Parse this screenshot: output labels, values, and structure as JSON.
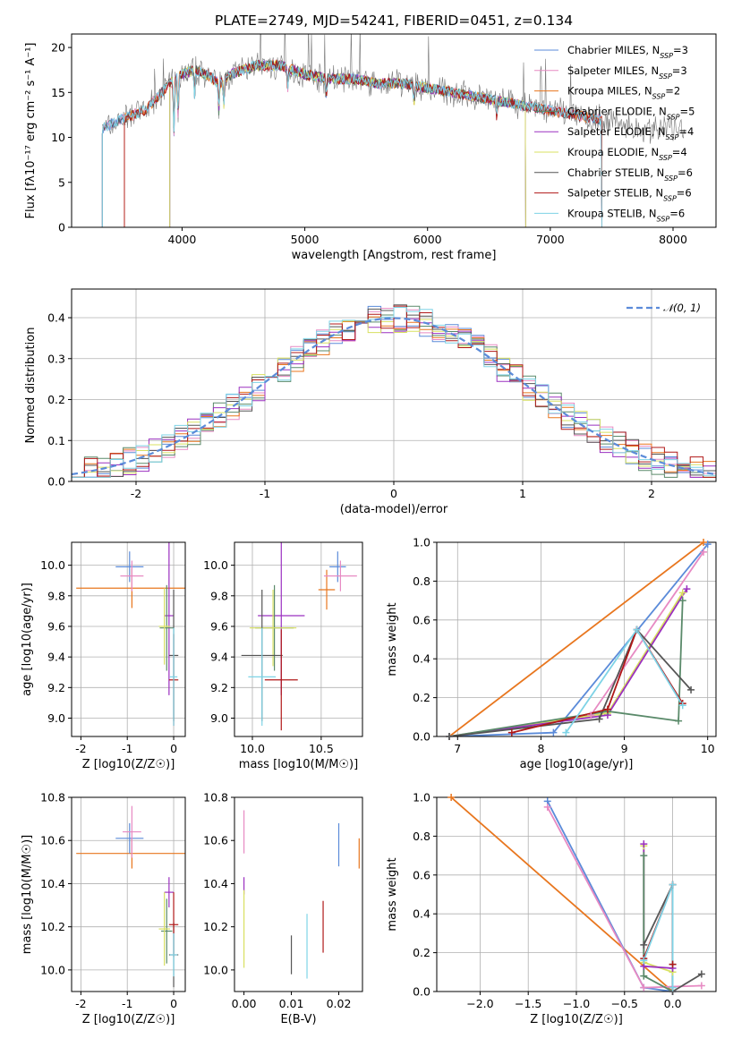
{
  "title": "PLATE=2749, MJD=54241, FIBERID=0451, z=0.134",
  "colors": {
    "Chabrier MILES": "#5b8bd9",
    "Salpeter MILES": "#e78ac3",
    "Kroupa MILES": "#e8761e",
    "Chabrier ELODIE": "#5a8a6a",
    "Salpeter ELODIE": "#9b30c0",
    "Kroupa ELODIE": "#d8e060",
    "Chabrier STELIB": "#555555",
    "Salpeter STELIB": "#b01818",
    "Kroupa STELIB": "#7ed3e6"
  },
  "chart_data": [
    {
      "id": "spectrum",
      "type": "line",
      "xlabel": "wavelength [Angstrom, rest frame]",
      "ylabel": "Flux [fλ10⁻¹⁷ erg cm⁻² s⁻¹ A⁻¹]",
      "xlim": [
        3100,
        8350
      ],
      "ylim": [
        0,
        21.5
      ],
      "xticks": [
        4000,
        5000,
        6000,
        7000,
        8000
      ],
      "yticks": [
        0,
        5,
        10,
        15,
        20
      ],
      "legend_position": "top-right",
      "legend": [
        "Chabrier MILES, N_SSP=3",
        "Salpeter MILES, N_SSP=3",
        "Kroupa MILES, N_SSP=2",
        "Chabrier ELODIE, N_SSP=5",
        "Salpeter ELODIE, N_SSP=4",
        "Kroupa ELODIE, N_SSP=4",
        "Chabrier STELIB, N_SSP=6",
        "Salpeter STELIB, N_SSP=6",
        "Kroupa STELIB, N_SSP=6"
      ],
      "data_spectrum": {
        "x": [
          3350,
          3500,
          3700,
          3800,
          3900,
          4000,
          4100,
          4200,
          4300,
          4400,
          4500,
          4600,
          4800,
          5000,
          5200,
          5400,
          5600,
          5800,
          6000,
          6200,
          6400,
          6600,
          6800,
          7000,
          7200,
          7400,
          7600,
          7800,
          8000,
          8100
        ],
        "y": [
          11,
          12,
          13,
          14.5,
          16,
          17,
          17.5,
          17,
          16,
          17,
          17.5,
          18,
          18,
          17,
          16.5,
          16.5,
          16,
          16,
          15.5,
          15,
          14.5,
          14,
          13.5,
          13,
          12.5,
          12,
          11.5,
          11,
          11,
          10.5
        ]
      },
      "model_range": {
        "Kroupa MILES": [
          3530,
          7420
        ],
        "Salpeter STELIB": [
          3530,
          7420
        ],
        "Kroupa ELODIE": [
          3900,
          6800
        ],
        "Chabrier ELODIE": [
          3900,
          6800
        ],
        "Salpeter ELODIE": [
          3900,
          6800
        ],
        "Chabrier MILES": [
          3350,
          7420
        ],
        "Salpeter MILES": [
          3350,
          7420
        ],
        "Chabrier STELIB": [
          3350,
          7420
        ],
        "Kroupa STELIB": [
          3350,
          7420
        ]
      }
    },
    {
      "id": "residuals",
      "type": "line",
      "xlabel": "(data-model)/error",
      "ylabel": "Normed distribution",
      "xlim": [
        -2.5,
        2.5
      ],
      "ylim": [
        0,
        0.47
      ],
      "xticks": [
        -2,
        -1,
        0,
        1,
        2
      ],
      "yticks": [
        0.0,
        0.1,
        0.2,
        0.3,
        0.4
      ],
      "grid": true,
      "legend_position": "top-right",
      "legend": [
        "𝒩(0, 1)"
      ],
      "gaussian": {
        "mean": 0,
        "sigma": 1
      }
    },
    {
      "id": "age-vs-Z",
      "type": "scatter",
      "xlabel": "Z [log10(Z/Z☉)]",
      "ylabel": "age  [log10(age/yr)]",
      "xlim": [
        -2.2,
        0.25
      ],
      "ylim": [
        8.88,
        10.15
      ],
      "xticks": [
        -2,
        -1,
        0
      ],
      "yticks": [
        9.0,
        9.2,
        9.4,
        9.6,
        9.8,
        10.0
      ],
      "grid": true,
      "points": [
        {
          "model": "Kroupa MILES",
          "x": -0.9,
          "xerr": 1.2,
          "y": 9.85,
          "yerr": 0.13
        },
        {
          "model": "Chabrier MILES",
          "x": -0.95,
          "xerr": 0.3,
          "y": 9.99,
          "yerr": 0.1
        },
        {
          "model": "Salpeter MILES",
          "x": -0.9,
          "xerr": 0.25,
          "y": 9.93,
          "yerr": 0.1
        },
        {
          "model": "Salpeter ELODIE",
          "x": -0.1,
          "xerr": 0.1,
          "y": 9.67,
          "yerr": 0.52
        },
        {
          "model": "Chabrier ELODIE",
          "x": -0.15,
          "xerr": 0.15,
          "y": 9.59,
          "yerr": 0.28
        },
        {
          "model": "Kroupa ELODIE",
          "x": -0.2,
          "xerr": 0.12,
          "y": 9.6,
          "yerr": 0.25
        },
        {
          "model": "Chabrier STELIB",
          "x": 0.0,
          "xerr": 0.1,
          "y": 9.41,
          "yerr": 0.43
        },
        {
          "model": "Salpeter STELIB",
          "x": 0.0,
          "xerr": 0.1,
          "y": 9.25,
          "yerr": 0.3
        },
        {
          "model": "Kroupa STELIB",
          "x": 0.0,
          "xerr": 0.08,
          "y": 9.27,
          "yerr": 0.32
        }
      ]
    },
    {
      "id": "age-vs-mass",
      "type": "scatter",
      "xlabel": "mass [log10(M/M☉)]",
      "xlim": [
        9.87,
        10.8
      ],
      "ylim": [
        8.88,
        10.15
      ],
      "xticks": [
        10.0,
        10.5
      ],
      "yticks": [
        9.0,
        9.2,
        9.4,
        9.6,
        9.8,
        10.0
      ],
      "grid": true,
      "points": [
        {
          "model": "Kroupa MILES",
          "x": 10.54,
          "xerr": 0.06,
          "y": 9.84,
          "yerr": 0.13
        },
        {
          "model": "Chabrier MILES",
          "x": 10.62,
          "xerr": 0.06,
          "y": 9.99,
          "yerr": 0.1
        },
        {
          "model": "Salpeter MILES",
          "x": 10.64,
          "xerr": 0.12,
          "y": 9.93,
          "yerr": 0.1
        },
        {
          "model": "Salpeter ELODIE",
          "x": 10.21,
          "xerr": 0.17,
          "y": 9.67,
          "yerr": 0.52
        },
        {
          "model": "Chabrier ELODIE",
          "x": 10.16,
          "xerr": 0.14,
          "y": 9.59,
          "yerr": 0.28
        },
        {
          "model": "Kroupa ELODIE",
          "x": 10.15,
          "xerr": 0.17,
          "y": 9.59,
          "yerr": 0.25
        },
        {
          "model": "Chabrier STELIB",
          "x": 10.07,
          "xerr": 0.15,
          "y": 9.41,
          "yerr": 0.43
        },
        {
          "model": "Salpeter STELIB",
          "x": 10.21,
          "xerr": 0.12,
          "y": 9.25,
          "yerr": 0.33
        },
        {
          "model": "Kroupa STELIB",
          "x": 10.07,
          "xerr": 0.1,
          "y": 9.27,
          "yerr": 0.32
        }
      ]
    },
    {
      "id": "mass-weight-vs-age",
      "type": "line",
      "xlabel": "age  [log10(age/yr)]",
      "ylabel": "mass weight",
      "xlim": [
        6.75,
        10.1
      ],
      "ylim": [
        0,
        1.0
      ],
      "xticks": [
        7,
        8,
        9,
        10
      ],
      "yticks": [
        0.0,
        0.2,
        0.4,
        0.6,
        0.8,
        1.0
      ],
      "grid": true,
      "series": [
        {
          "model": "Kroupa MILES",
          "x": [
            6.9,
            9.95
          ],
          "y": [
            0.0,
            1.0
          ]
        },
        {
          "model": "Chabrier MILES",
          "x": [
            6.9,
            8.15,
            10.0
          ],
          "y": [
            0.0,
            0.02,
            0.99
          ]
        },
        {
          "model": "Salpeter MILES",
          "x": [
            6.9,
            8.6,
            9.95
          ],
          "y": [
            0.0,
            0.11,
            0.95
          ]
        },
        {
          "model": "Kroupa ELODIE",
          "x": [
            6.9,
            8.8,
            9.7
          ],
          "y": [
            0.0,
            0.12,
            0.74
          ]
        },
        {
          "model": "Salpeter ELODIE",
          "x": [
            6.9,
            8.8,
            9.75
          ],
          "y": [
            0.0,
            0.11,
            0.76
          ]
        },
        {
          "model": "Chabrier ELODIE",
          "x": [
            6.9,
            8.8,
            9.65,
            9.7
          ],
          "y": [
            0.0,
            0.13,
            0.08,
            0.7
          ]
        },
        {
          "model": "Chabrier STELIB",
          "x": [
            6.9,
            8.7,
            9.15,
            9.8
          ],
          "y": [
            0.0,
            0.09,
            0.55,
            0.24
          ]
        },
        {
          "model": "Salpeter STELIB",
          "x": [
            7.65,
            8.8,
            9.15,
            9.7
          ],
          "y": [
            0.02,
            0.14,
            0.55,
            0.17
          ]
        },
        {
          "model": "Kroupa STELIB",
          "x": [
            8.3,
            9.15,
            9.7
          ],
          "y": [
            0.02,
            0.55,
            0.16
          ]
        }
      ]
    },
    {
      "id": "mass-vs-Z",
      "type": "scatter",
      "xlabel": "Z [log10(Z/Z☉)]",
      "ylabel": "mass [log10(M/M☉)]",
      "xlim": [
        -2.2,
        0.25
      ],
      "ylim": [
        9.9,
        10.8
      ],
      "xticks": [
        -2,
        -1,
        0
      ],
      "yticks": [
        10.0,
        10.2,
        10.4,
        10.6,
        10.8
      ],
      "grid": true,
      "points": [
        {
          "model": "Kroupa MILES",
          "x": -0.9,
          "xerr": 1.2,
          "y": 10.54,
          "yerr": 0.07
        },
        {
          "model": "Chabrier MILES",
          "x": -0.95,
          "xerr": 0.3,
          "y": 10.61,
          "yerr": 0.07
        },
        {
          "model": "Salpeter MILES",
          "x": -0.9,
          "xerr": 0.2,
          "y": 10.64,
          "yerr": 0.12
        },
        {
          "model": "Salpeter ELODIE",
          "x": -0.1,
          "xerr": 0.1,
          "y": 10.36,
          "yerr": 0.07
        },
        {
          "model": "Chabrier ELODIE",
          "x": -0.15,
          "xerr": 0.12,
          "y": 10.18,
          "yerr": 0.15
        },
        {
          "model": "Kroupa ELODIE",
          "x": -0.2,
          "xerr": 0.12,
          "y": 10.19,
          "yerr": 0.17
        },
        {
          "model": "Chabrier STELIB",
          "x": 0.0,
          "xerr": 0.1,
          "y": 10.07,
          "yerr": 0.15
        },
        {
          "model": "Salpeter STELIB",
          "x": 0.0,
          "xerr": 0.1,
          "y": 10.21,
          "yerr": 0.15
        },
        {
          "model": "Kroupa STELIB",
          "x": 0.0,
          "xerr": 0.08,
          "y": 10.07,
          "yerr": 0.1
        }
      ]
    },
    {
      "id": "mass-vs-EBV",
      "type": "scatter",
      "xlabel": "E(B-V)",
      "xlim": [
        -0.002,
        0.025
      ],
      "ylim": [
        9.9,
        10.8
      ],
      "xticks": [
        0.0,
        0.01,
        0.02
      ],
      "xticklabels": [
        "0.00",
        "0.01",
        "0.02"
      ],
      "yticks": [
        10.0,
        10.2,
        10.4,
        10.6,
        10.8
      ],
      "points": [
        {
          "model": "Salpeter MILES",
          "x": 0.0,
          "y": 10.64,
          "yerr": 0.1
        },
        {
          "model": "Salpeter ELODIE",
          "x": 0.0,
          "y": 10.39,
          "yerr": 0.04
        },
        {
          "model": "Kroupa ELODIE",
          "x": 0.0,
          "y": 10.19,
          "yerr": 0.18
        },
        {
          "model": "Chabrier STELIB",
          "x": 0.01,
          "y": 10.07,
          "yerr": 0.09
        },
        {
          "model": "Kroupa STELIB",
          "x": 0.0133,
          "y": 10.11,
          "yerr": 0.15
        },
        {
          "model": "Salpeter STELIB",
          "x": 0.0167,
          "y": 10.2,
          "yerr": 0.12
        },
        {
          "model": "Chabrier MILES",
          "x": 0.02,
          "y": 10.58,
          "yerr": 0.1
        },
        {
          "model": "Kroupa MILES",
          "x": 0.0243,
          "y": 10.54,
          "yerr": 0.07
        }
      ]
    },
    {
      "id": "mass-weight-vs-Z",
      "type": "line",
      "xlabel": "Z [log10(Z/Z☉)]",
      "ylabel": "mass weight",
      "xlim": [
        -2.45,
        0.45
      ],
      "ylim": [
        0,
        1.0
      ],
      "xticks": [
        -2.0,
        -1.5,
        -1.0,
        -0.5,
        0.0
      ],
      "xticklabels": [
        "−2.0",
        "−1.5",
        "−1.0",
        "−0.5",
        "0.0"
      ],
      "yticks": [
        0.0,
        0.2,
        0.4,
        0.6,
        0.8,
        1.0
      ],
      "grid": true,
      "series": [
        {
          "model": "Kroupa MILES",
          "x": [
            -2.3,
            0.0
          ],
          "y": [
            1.0,
            0.0
          ]
        },
        {
          "model": "Chabrier MILES",
          "x": [
            -1.3,
            -0.3,
            0.0
          ],
          "y": [
            0.98,
            0.02,
            0.0
          ]
        },
        {
          "model": "Salpeter MILES",
          "x": [
            -1.3,
            -0.3,
            0.3
          ],
          "y": [
            0.95,
            0.02,
            0.03
          ]
        },
        {
          "model": "Kroupa ELODIE",
          "x": [
            -0.3,
            -0.3,
            0.0
          ],
          "y": [
            0.75,
            0.15,
            0.1
          ]
        },
        {
          "model": "Salpeter ELODIE",
          "x": [
            -0.3,
            -0.3,
            0.0,
            0.0
          ],
          "y": [
            0.76,
            0.13,
            0.12,
            0.0
          ]
        },
        {
          "model": "Chabrier ELODIE",
          "x": [
            -0.3,
            -0.3,
            0.0,
            0.0
          ],
          "y": [
            0.7,
            0.08,
            0.0,
            0.14
          ]
        },
        {
          "model": "Chabrier STELIB",
          "x": [
            -0.3,
            0.0,
            0.0,
            0.3
          ],
          "y": [
            0.24,
            0.55,
            0.0,
            0.09
          ]
        },
        {
          "model": "Salpeter STELIB",
          "x": [
            -0.3,
            0.0,
            0.0
          ],
          "y": [
            0.17,
            0.55,
            0.14
          ]
        },
        {
          "model": "Kroupa STELIB",
          "x": [
            -0.3,
            0.0,
            0.0
          ],
          "y": [
            0.16,
            0.55,
            0.02
          ]
        }
      ]
    }
  ]
}
